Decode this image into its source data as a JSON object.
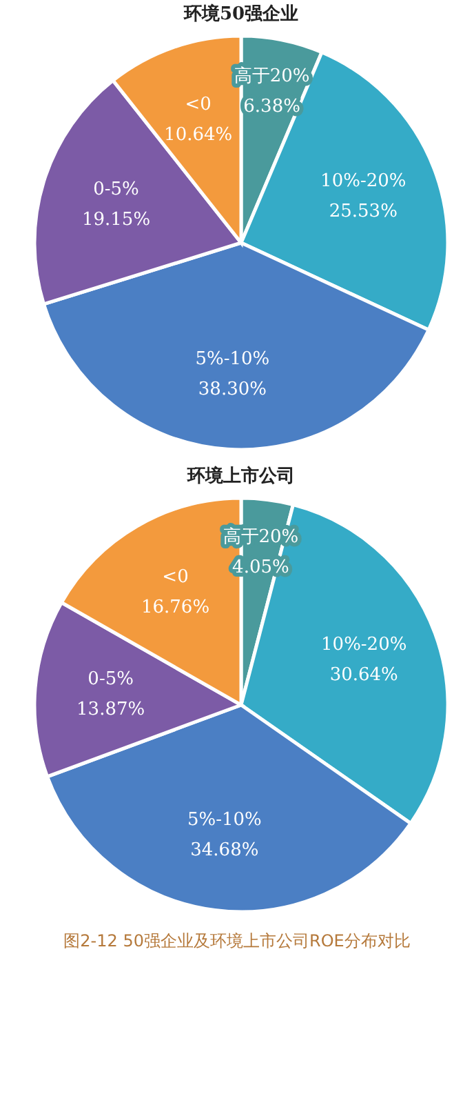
{
  "chart_data": [
    {
      "type": "pie",
      "title": "环境50强企业",
      "categories": [
        "高于20%",
        "10%-20%",
        "5%-10%",
        "0-5%",
        "<0"
      ],
      "values": [
        6.38,
        25.53,
        38.3,
        19.15,
        10.64
      ],
      "value_labels": [
        "6.38%",
        "25.53%",
        "38.30%",
        "19.15%",
        "10.64%"
      ],
      "colors": [
        "#4a9a9c",
        "#35abc7",
        "#4b7fc4",
        "#7c5ba6",
        "#f39a3d"
      ]
    },
    {
      "type": "pie",
      "title": "环境上市公司",
      "categories": [
        "高于20%",
        "10%-20%",
        "5%-10%",
        "0-5%",
        "<0"
      ],
      "values": [
        4.05,
        30.64,
        34.68,
        13.87,
        16.76
      ],
      "value_labels": [
        "4.05%",
        "30.64%",
        "34.68%",
        "13.87%",
        "16.76%"
      ],
      "colors": [
        "#4a9a9c",
        "#35abc7",
        "#4b7fc4",
        "#7c5ba6",
        "#f39a3d"
      ],
      "annotations": [
        "图2-12 50强企业及环境上市公司ROE分布对比"
      ]
    }
  ]
}
